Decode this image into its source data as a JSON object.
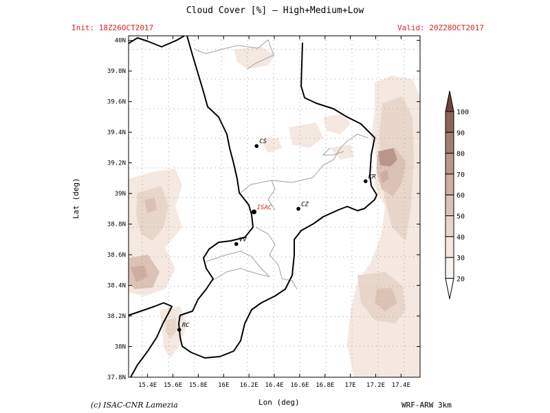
{
  "header": {
    "title": "Cloud Cover [%] — High+Medium+Low",
    "init": "Init: 18Z26OCT2017",
    "valid": "Valid: 20Z28OCT2017"
  },
  "footer": {
    "credit": "(c) ISAC-CNR Lamezia",
    "model": "WRF-ARW 3km"
  },
  "axes": {
    "xlabel": "Lon (deg)",
    "ylabel": "Lat (deg)",
    "lon_ticks": [
      "15.4E",
      "15.6E",
      "15.8E",
      "16E",
      "16.2E",
      "16.4E",
      "16.6E",
      "16.8E",
      "17E",
      "17.2E",
      "17.4E"
    ],
    "lat_ticks": [
      "40N",
      "39.8N",
      "39.6N",
      "39.4N",
      "39.2N",
      "39N",
      "38.8N",
      "38.6N",
      "38.4N",
      "38.2N",
      "38N",
      "37.8N"
    ],
    "lon_range": [
      15.25,
      17.55
    ],
    "lat_range": [
      37.8,
      40.03
    ]
  },
  "cities": [
    {
      "code": "CS",
      "lon": 16.26,
      "lat": 39.31,
      "highlight": false
    },
    {
      "code": "KR",
      "lon": 17.12,
      "lat": 39.08,
      "highlight": false
    },
    {
      "code": "ISAC",
      "lon": 16.24,
      "lat": 38.88,
      "highlight": true
    },
    {
      "code": "CZ",
      "lon": 16.59,
      "lat": 38.9,
      "highlight": false
    },
    {
      "code": "VV",
      "lon": 16.1,
      "lat": 38.67,
      "highlight": false
    },
    {
      "code": "RC",
      "lon": 15.65,
      "lat": 38.11,
      "highlight": false
    }
  ],
  "colorbar": {
    "labels": [
      "100",
      "90",
      "80",
      "70",
      "60",
      "50",
      "40",
      "30",
      "20"
    ],
    "colors": [
      "#6b4536",
      "#8a6456",
      "#a07e70",
      "#b8978a",
      "#ccaea2",
      "#dcc2b5",
      "#e9d6cb",
      "#f4e8e0",
      "#fbf4ee"
    ]
  },
  "colors": {
    "highlight_text": "#e0201c",
    "coast": "#000000",
    "border": "#a0a0a0"
  }
}
